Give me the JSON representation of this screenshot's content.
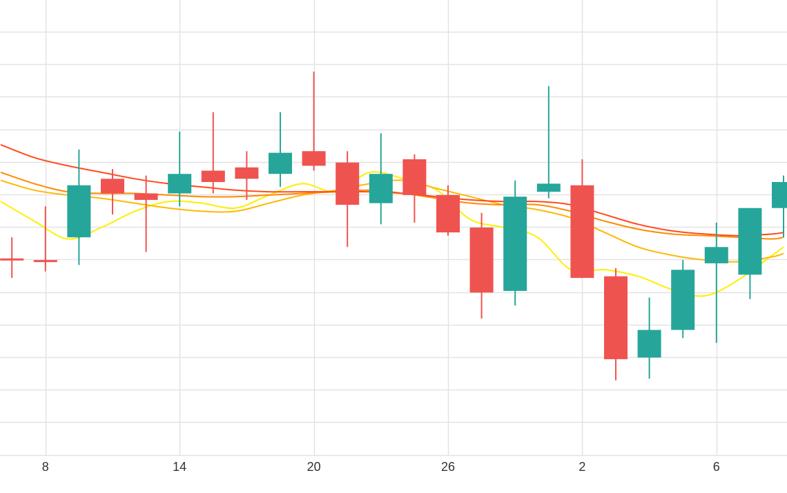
{
  "chart_data": {
    "type": "candlestick",
    "title": "",
    "xlabel": "",
    "ylabel": "",
    "grid": true,
    "x_tick_labels": [
      {
        "x": 2,
        "label": "8"
      },
      {
        "x": 8,
        "label": "14"
      },
      {
        "x": 14,
        "label": "20"
      },
      {
        "x": 20,
        "label": "26"
      },
      {
        "x": 26,
        "label": "2"
      },
      {
        "x": 32,
        "label": "6"
      }
    ],
    "xlim": [
      0,
      35
    ],
    "ylim": [
      0,
      14
    ],
    "candles": [
      {
        "x": 0.5,
        "open": 6.05,
        "high": 6.7,
        "low": 5.45,
        "close": 6.0
      },
      {
        "x": 2.0,
        "open": 6.0,
        "high": 7.65,
        "low": 5.65,
        "close": 5.95
      },
      {
        "x": 3.5,
        "open": 6.7,
        "high": 9.4,
        "low": 5.85,
        "close": 8.3
      },
      {
        "x": 5.0,
        "open": 8.5,
        "high": 8.8,
        "low": 7.4,
        "close": 8.05
      },
      {
        "x": 6.5,
        "open": 8.05,
        "high": 8.6,
        "low": 6.25,
        "close": 7.85
      },
      {
        "x": 8.0,
        "open": 8.05,
        "high": 9.95,
        "low": 7.65,
        "close": 8.65
      },
      {
        "x": 9.5,
        "open": 8.75,
        "high": 10.55,
        "low": 8.05,
        "close": 8.4
      },
      {
        "x": 11.0,
        "open": 8.85,
        "high": 9.35,
        "low": 7.85,
        "close": 8.5
      },
      {
        "x": 12.5,
        "open": 8.65,
        "high": 10.55,
        "low": 8.25,
        "close": 9.3
      },
      {
        "x": 14.0,
        "open": 9.35,
        "high": 11.8,
        "low": 8.75,
        "close": 8.9
      },
      {
        "x": 15.5,
        "open": 9.0,
        "high": 9.35,
        "low": 6.4,
        "close": 7.7
      },
      {
        "x": 17.0,
        "open": 7.75,
        "high": 9.9,
        "low": 7.1,
        "close": 8.65
      },
      {
        "x": 18.5,
        "open": 9.1,
        "high": 9.25,
        "low": 7.15,
        "close": 8.0
      },
      {
        "x": 20.0,
        "open": 8.0,
        "high": 8.3,
        "low": 6.75,
        "close": 6.85
      },
      {
        "x": 21.5,
        "open": 7.0,
        "high": 7.45,
        "low": 4.2,
        "close": 5.0
      },
      {
        "x": 23.0,
        "open": 5.05,
        "high": 8.45,
        "low": 4.6,
        "close": 7.95
      },
      {
        "x": 24.5,
        "open": 8.1,
        "high": 11.35,
        "low": 7.9,
        "close": 8.35
      },
      {
        "x": 26.0,
        "open": 8.3,
        "high": 9.1,
        "low": 5.45,
        "close": 5.45
      },
      {
        "x": 27.5,
        "open": 5.5,
        "high": 5.75,
        "low": 2.3,
        "close": 2.95
      },
      {
        "x": 29.0,
        "open": 3.0,
        "high": 4.85,
        "low": 2.35,
        "close": 3.85
      },
      {
        "x": 30.5,
        "open": 3.85,
        "high": 6.0,
        "low": 3.6,
        "close": 5.7
      },
      {
        "x": 32.0,
        "open": 5.9,
        "high": 7.15,
        "low": 3.45,
        "close": 6.4
      },
      {
        "x": 33.5,
        "open": 5.55,
        "high": 7.6,
        "low": 4.8,
        "close": 7.6
      },
      {
        "x": 35.0,
        "open": 7.6,
        "high": 8.6,
        "low": 6.7,
        "close": 8.4
      }
    ],
    "series": [
      {
        "color": "#ffee00",
        "x": [
          0,
          1.5,
          3,
          4.5,
          6,
          7.5,
          9,
          10.5,
          12,
          13.5,
          15,
          16.5,
          18,
          19.5,
          21,
          22.5,
          24,
          25.5,
          27,
          28.5,
          30,
          31.5,
          33,
          34.5,
          35
        ],
        "y": [
          7.8,
          7.2,
          6.65,
          7.0,
          7.5,
          7.8,
          7.75,
          7.6,
          8.0,
          8.35,
          8.1,
          8.7,
          8.5,
          8.15,
          7.25,
          7.0,
          6.7,
          5.7,
          5.7,
          5.5,
          5.1,
          4.9,
          5.4,
          6.15,
          6.4
        ]
      },
      {
        "color": "#ffb800",
        "x": [
          0,
          1.5,
          3,
          4.5,
          6,
          7.5,
          9,
          10.5,
          12,
          13.5,
          15,
          16.5,
          18,
          19.5,
          21,
          22.5,
          24,
          25.5,
          27,
          28.5,
          30,
          31.5,
          33,
          34.5,
          35
        ],
        "y": [
          8.45,
          8.15,
          8.0,
          7.9,
          7.75,
          7.6,
          7.5,
          7.5,
          7.75,
          8.0,
          8.15,
          8.35,
          8.45,
          8.2,
          7.95,
          7.7,
          7.55,
          7.3,
          6.85,
          6.4,
          6.15,
          6.0,
          5.95,
          6.1,
          6.2
        ]
      },
      {
        "color": "#ff8a00",
        "x": [
          0,
          1.5,
          3,
          4.5,
          6,
          7.5,
          9,
          10.5,
          12,
          13.5,
          15,
          16.5,
          18,
          19.5,
          21,
          22.5,
          24,
          25.5,
          27,
          28.5,
          30,
          31.5,
          33,
          34.5,
          35
        ],
        "y": [
          8.7,
          8.35,
          8.1,
          8.05,
          8.05,
          8.0,
          7.95,
          7.95,
          8.0,
          8.05,
          8.1,
          8.15,
          8.05,
          7.9,
          7.75,
          7.7,
          7.7,
          7.5,
          7.2,
          6.95,
          6.8,
          6.75,
          6.7,
          6.65,
          6.7
        ]
      },
      {
        "color": "#ff4a1c",
        "x": [
          0,
          1.5,
          3,
          4.5,
          6,
          7.5,
          9,
          10.5,
          12,
          13.5,
          15,
          16.5,
          18,
          19.5,
          21,
          22.5,
          24,
          25.5,
          27,
          28.5,
          30,
          31.5,
          33,
          34.5,
          35
        ],
        "y": [
          9.55,
          9.15,
          8.9,
          8.7,
          8.5,
          8.35,
          8.25,
          8.15,
          8.1,
          8.1,
          8.1,
          8.1,
          8.05,
          7.95,
          7.85,
          7.8,
          7.8,
          7.7,
          7.4,
          7.1,
          6.9,
          6.8,
          6.75,
          6.8,
          6.85
        ]
      }
    ],
    "up_color": "#26a69a",
    "down_color": "#ef5350",
    "grid_color": "#e3e3e3",
    "tick_color": "#333333"
  }
}
